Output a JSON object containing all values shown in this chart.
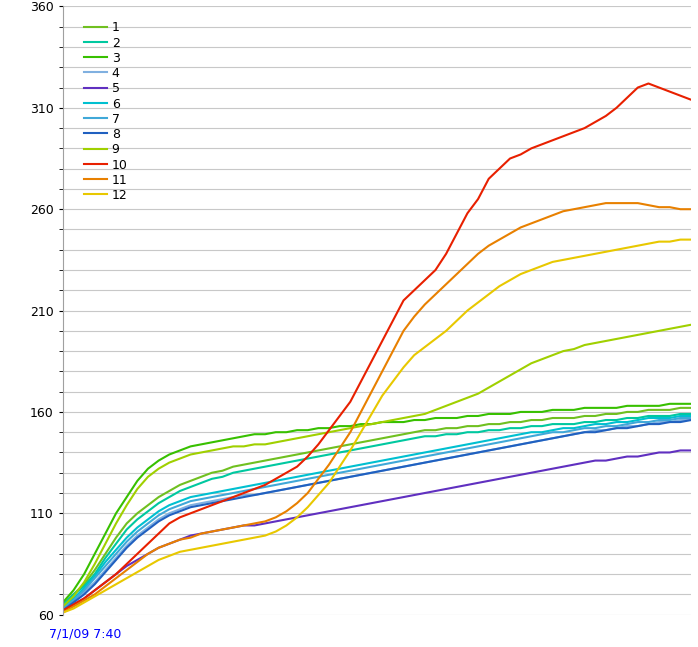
{
  "title": "",
  "xlabel_bottom": "7/1/09 7:40",
  "ylim": [
    60,
    360
  ],
  "yticks_major": [
    60,
    110,
    160,
    210,
    260,
    310,
    360
  ],
  "ytick_minor_step": 10,
  "background_color": "#ffffff",
  "grid_color": "#c8c8c8",
  "series_order": [
    "1",
    "2",
    "3",
    "4",
    "5",
    "6",
    "7",
    "8",
    "9",
    "10",
    "11",
    "12"
  ],
  "series": {
    "1": {
      "color": "#70c020"
    },
    "2": {
      "color": "#00c8a0"
    },
    "3": {
      "color": "#38c000"
    },
    "4": {
      "color": "#80b0e0"
    },
    "5": {
      "color": "#6030c0"
    },
    "6": {
      "color": "#00c0d0"
    },
    "7": {
      "color": "#40a8d8"
    },
    "8": {
      "color": "#2060c0"
    },
    "9": {
      "color": "#a0d000"
    },
    "10": {
      "color": "#e82000"
    },
    "11": {
      "color": "#e88000"
    },
    "12": {
      "color": "#e8c800"
    }
  },
  "n_points": 60,
  "data": {
    "1": [
      65,
      70,
      75,
      82,
      90,
      98,
      105,
      110,
      114,
      118,
      121,
      124,
      126,
      128,
      130,
      131,
      133,
      134,
      135,
      136,
      137,
      138,
      139,
      140,
      141,
      142,
      143,
      144,
      145,
      146,
      147,
      148,
      149,
      150,
      151,
      151,
      152,
      152,
      153,
      153,
      154,
      154,
      155,
      155,
      156,
      156,
      157,
      157,
      157,
      158,
      158,
      159,
      159,
      160,
      160,
      161,
      161,
      161,
      162,
      162
    ],
    "2": [
      65,
      70,
      74,
      80,
      88,
      95,
      102,
      107,
      111,
      115,
      118,
      121,
      123,
      125,
      127,
      128,
      130,
      131,
      132,
      133,
      134,
      135,
      136,
      137,
      138,
      139,
      140,
      141,
      142,
      143,
      144,
      145,
      146,
      147,
      148,
      148,
      149,
      149,
      150,
      150,
      151,
      151,
      152,
      152,
      153,
      153,
      154,
      154,
      154,
      155,
      155,
      156,
      156,
      157,
      157,
      158,
      158,
      158,
      159,
      159
    ],
    "3": [
      66,
      72,
      80,
      90,
      100,
      110,
      118,
      126,
      132,
      136,
      139,
      141,
      143,
      144,
      145,
      146,
      147,
      148,
      149,
      149,
      150,
      150,
      151,
      151,
      152,
      152,
      153,
      153,
      154,
      154,
      155,
      155,
      155,
      156,
      156,
      157,
      157,
      157,
      158,
      158,
      159,
      159,
      159,
      160,
      160,
      160,
      161,
      161,
      161,
      162,
      162,
      162,
      162,
      163,
      163,
      163,
      163,
      164,
      164,
      164
    ],
    "4": [
      63,
      67,
      71,
      76,
      82,
      88,
      94,
      99,
      103,
      107,
      110,
      112,
      114,
      115,
      116,
      117,
      118,
      119,
      119,
      120,
      121,
      122,
      123,
      124,
      125,
      126,
      127,
      128,
      129,
      130,
      131,
      132,
      133,
      134,
      135,
      136,
      137,
      138,
      139,
      140,
      141,
      142,
      143,
      144,
      145,
      146,
      147,
      148,
      149,
      150,
      151,
      151,
      152,
      153,
      153,
      154,
      155,
      155,
      156,
      156
    ],
    "5": [
      62,
      65,
      68,
      72,
      76,
      80,
      84,
      87,
      90,
      93,
      95,
      97,
      99,
      100,
      101,
      102,
      103,
      104,
      104,
      105,
      106,
      107,
      108,
      109,
      110,
      111,
      112,
      113,
      114,
      115,
      116,
      117,
      118,
      119,
      120,
      121,
      122,
      123,
      124,
      125,
      126,
      127,
      128,
      129,
      130,
      131,
      132,
      133,
      134,
      135,
      136,
      136,
      137,
      138,
      138,
      139,
      140,
      140,
      141,
      141
    ],
    "6": [
      64,
      68,
      73,
      79,
      86,
      92,
      98,
      103,
      107,
      111,
      114,
      116,
      118,
      119,
      120,
      121,
      122,
      123,
      124,
      125,
      126,
      127,
      128,
      129,
      130,
      131,
      132,
      133,
      134,
      135,
      136,
      137,
      138,
      139,
      140,
      141,
      142,
      143,
      144,
      145,
      146,
      147,
      148,
      149,
      150,
      150,
      151,
      152,
      152,
      153,
      154,
      154,
      155,
      155,
      156,
      157,
      157,
      157,
      158,
      158
    ],
    "7": [
      63,
      67,
      72,
      78,
      84,
      90,
      96,
      101,
      105,
      109,
      112,
      114,
      116,
      117,
      118,
      119,
      120,
      121,
      122,
      123,
      124,
      125,
      126,
      127,
      128,
      129,
      130,
      131,
      132,
      133,
      134,
      135,
      136,
      137,
      138,
      139,
      140,
      141,
      142,
      143,
      144,
      145,
      146,
      147,
      148,
      149,
      150,
      150,
      151,
      152,
      152,
      153,
      153,
      154,
      155,
      155,
      156,
      156,
      157,
      157
    ],
    "8": [
      62,
      66,
      70,
      75,
      81,
      87,
      93,
      98,
      102,
      106,
      109,
      111,
      113,
      114,
      115,
      116,
      117,
      118,
      119,
      120,
      121,
      122,
      123,
      124,
      125,
      126,
      127,
      128,
      129,
      130,
      131,
      132,
      133,
      134,
      135,
      136,
      137,
      138,
      139,
      140,
      141,
      142,
      143,
      144,
      145,
      146,
      147,
      148,
      149,
      150,
      150,
      151,
      152,
      152,
      153,
      154,
      154,
      155,
      155,
      156
    ],
    "9": [
      64,
      69,
      76,
      85,
      95,
      105,
      114,
      122,
      128,
      132,
      135,
      137,
      139,
      140,
      141,
      142,
      143,
      143,
      144,
      144,
      145,
      146,
      147,
      148,
      149,
      150,
      151,
      152,
      153,
      154,
      155,
      156,
      157,
      158,
      159,
      161,
      163,
      165,
      167,
      169,
      172,
      175,
      178,
      181,
      184,
      186,
      188,
      190,
      191,
      193,
      194,
      195,
      196,
      197,
      198,
      199,
      200,
      201,
      202,
      203
    ],
    "10": [
      62,
      65,
      68,
      72,
      76,
      80,
      85,
      90,
      95,
      100,
      105,
      108,
      110,
      112,
      114,
      116,
      118,
      120,
      122,
      124,
      127,
      130,
      133,
      138,
      144,
      151,
      158,
      165,
      175,
      185,
      195,
      205,
      215,
      220,
      225,
      230,
      238,
      248,
      258,
      265,
      275,
      280,
      285,
      287,
      290,
      292,
      294,
      296,
      298,
      300,
      303,
      306,
      310,
      315,
      320,
      322,
      320,
      318,
      316,
      314
    ],
    "11": [
      61,
      64,
      67,
      70,
      74,
      78,
      82,
      86,
      90,
      93,
      95,
      97,
      98,
      100,
      101,
      102,
      103,
      104,
      105,
      106,
      108,
      111,
      115,
      120,
      127,
      134,
      142,
      150,
      160,
      170,
      180,
      190,
      200,
      207,
      213,
      218,
      223,
      228,
      233,
      238,
      242,
      245,
      248,
      251,
      253,
      255,
      257,
      259,
      260,
      261,
      262,
      263,
      263,
      263,
      263,
      262,
      261,
      261,
      260,
      260
    ],
    "12": [
      61,
      63,
      66,
      69,
      72,
      75,
      78,
      81,
      84,
      87,
      89,
      91,
      92,
      93,
      94,
      95,
      96,
      97,
      98,
      99,
      101,
      104,
      108,
      113,
      119,
      125,
      133,
      141,
      150,
      159,
      168,
      175,
      182,
      188,
      192,
      196,
      200,
      205,
      210,
      214,
      218,
      222,
      225,
      228,
      230,
      232,
      234,
      235,
      236,
      237,
      238,
      239,
      240,
      241,
      242,
      243,
      244,
      244,
      245,
      245
    ]
  }
}
